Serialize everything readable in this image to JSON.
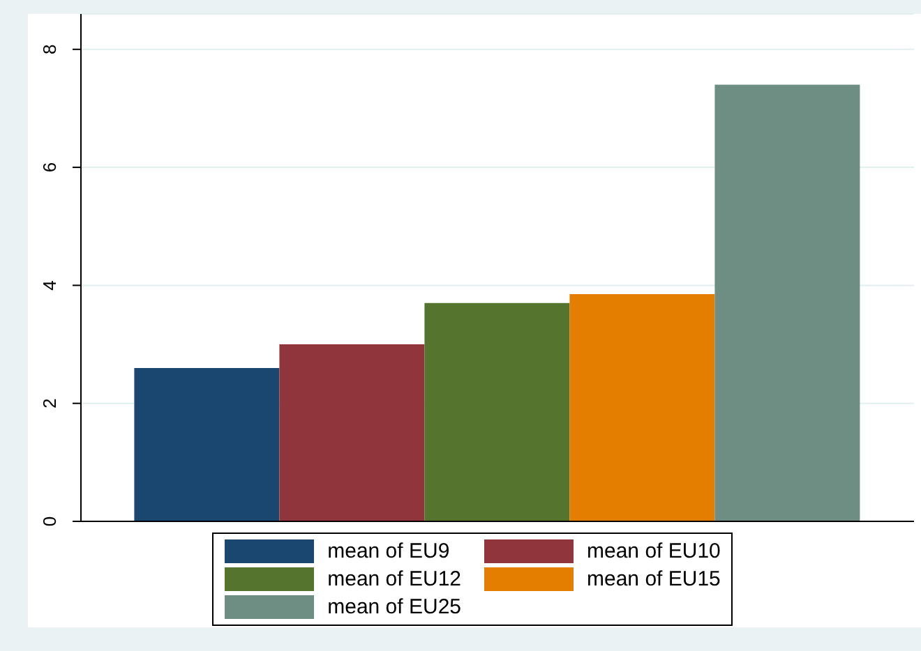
{
  "chart_data": {
    "type": "bar",
    "categories": [
      null
    ],
    "series": [
      {
        "name": "mean of EU9",
        "color": "#1a476f",
        "values": [
          2.6
        ]
      },
      {
        "name": "mean of EU10",
        "color": "#90353b",
        "values": [
          3.0
        ]
      },
      {
        "name": "mean of EU12",
        "color": "#55752f",
        "values": [
          3.7
        ]
      },
      {
        "name": "mean of EU15",
        "color": "#e37e00",
        "values": [
          3.85
        ]
      },
      {
        "name": "mean of EU25",
        "color": "#6e8e84",
        "values": [
          7.4
        ]
      }
    ],
    "ylim": [
      0,
      8.6
    ],
    "yticks": [
      0,
      2,
      4,
      6,
      8
    ],
    "grid": "y",
    "legend": "bottom"
  }
}
